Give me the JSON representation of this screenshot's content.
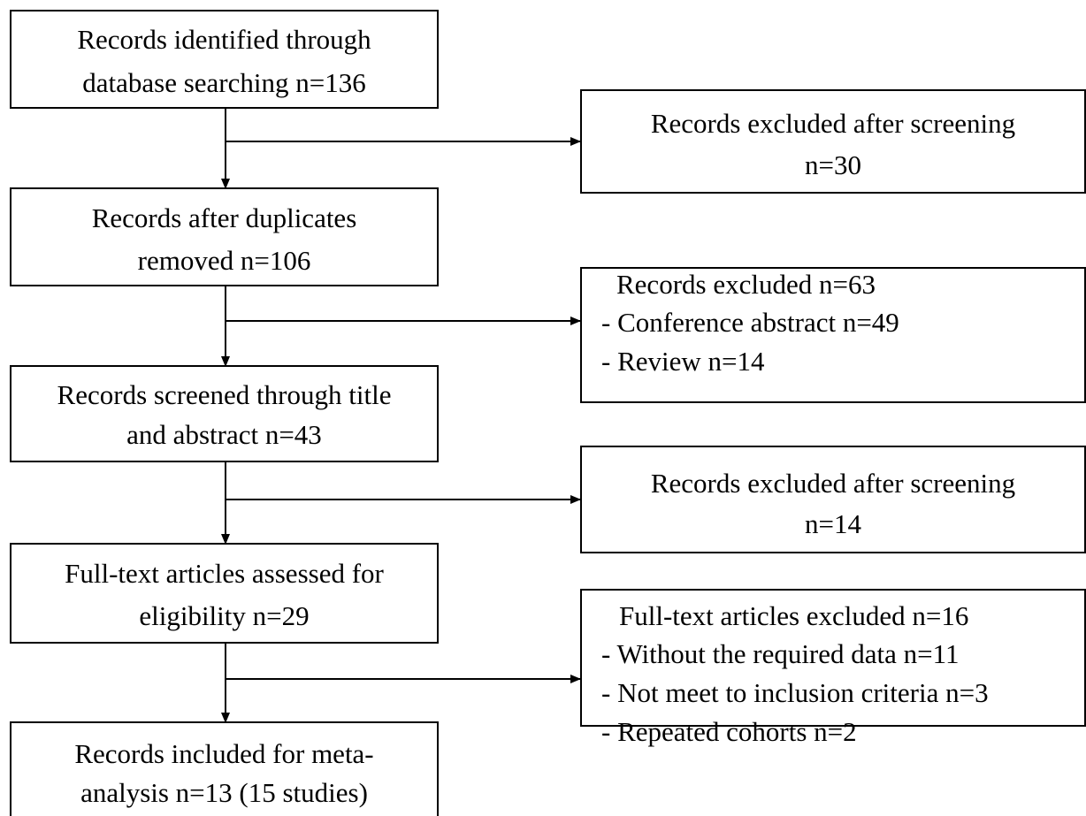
{
  "nodes": [
    {
      "lines": [
        "Records identified through",
        "database searching n=136"
      ]
    },
    {
      "lines": [
        "Records after duplicates",
        "removed n=106"
      ]
    },
    {
      "lines": [
        "Records screened through title",
        "and abstract n=43"
      ]
    },
    {
      "lines": [
        "Full-text articles assessed for",
        "eligibility n=29"
      ]
    },
    {
      "lines": [
        "Records included for meta-",
        "analysis n=13 (15 studies)"
      ]
    }
  ],
  "exclusions": [
    {
      "lines": [
        "Records excluded after screening",
        "n=30"
      ]
    },
    {
      "lines": [
        "Records excluded n=63",
        "- Conference abstract n=49",
        "- Review n=14"
      ]
    },
    {
      "lines": [
        "Records excluded after screening",
        "n=14"
      ]
    },
    {
      "lines": [
        "Full-text articles excluded n=16",
        "- Without the required data n=11",
        "- Not meet to inclusion criteria n=3",
        "- Repeated cohorts n=2"
      ]
    }
  ]
}
